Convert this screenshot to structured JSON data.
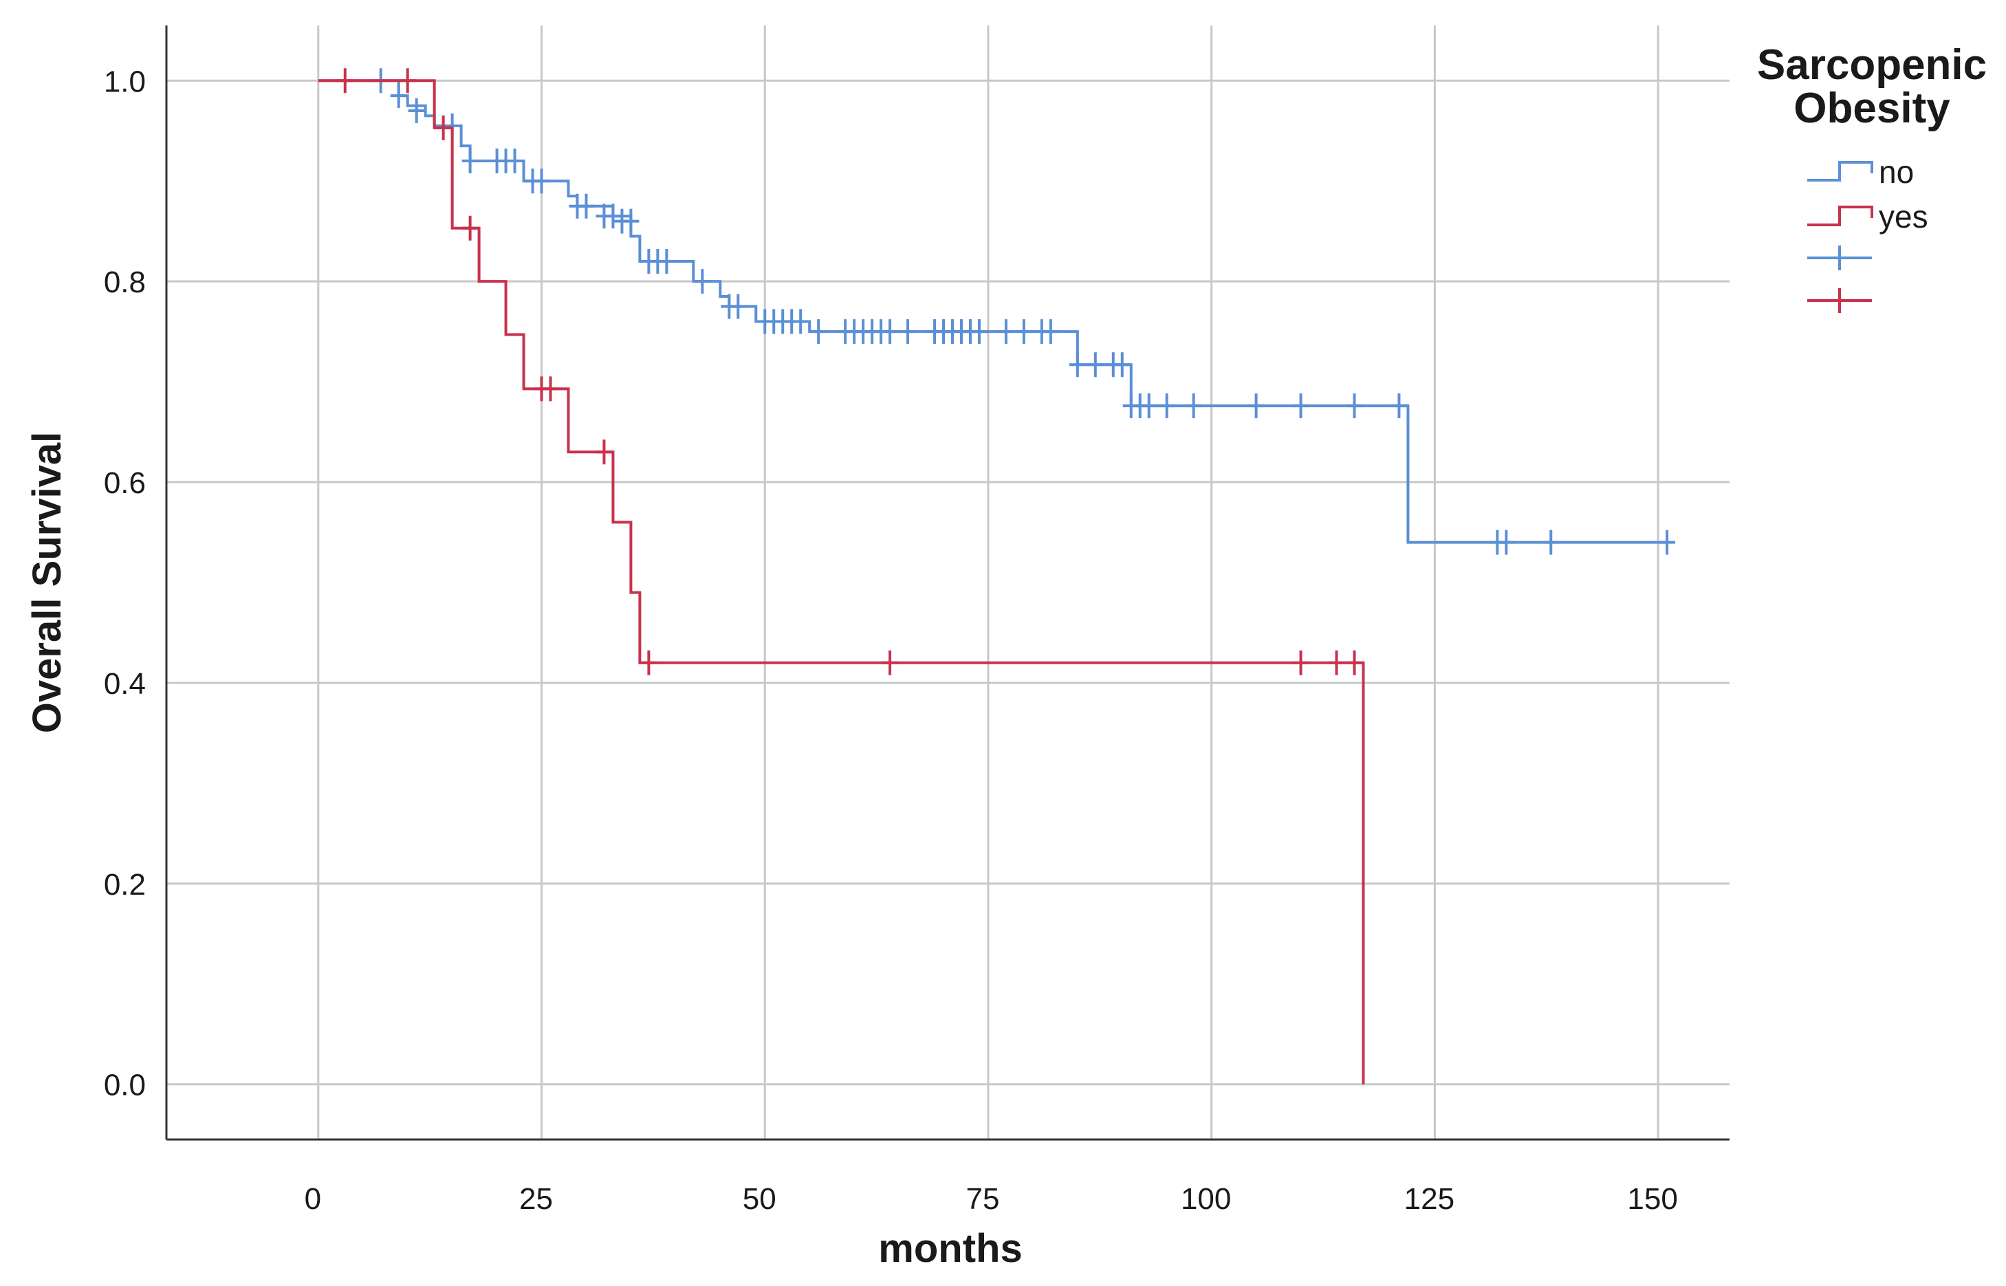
{
  "chart_data": {
    "type": "line",
    "subtype": "kaplan-meier step",
    "title": "",
    "xlabel": "months",
    "ylabel": "Overall Survival",
    "xlim": [
      -17,
      158
    ],
    "ylim": [
      -0.055,
      1.055
    ],
    "x_ticks": [
      "0",
      "25",
      "50",
      "75",
      "100",
      "125",
      "150"
    ],
    "y_ticks": [
      "0.0",
      "0.2",
      "0.4",
      "0.6",
      "0.8",
      "1.0"
    ],
    "grid": true,
    "legend": {
      "title_line1": "Sarcopenic",
      "title_line2": "Obesity",
      "placement": "right",
      "entries": [
        "no",
        "yes",
        "",
        ""
      ]
    },
    "series": [
      {
        "name": "no",
        "color": "#5b8fd6",
        "steps": [
          [
            0,
            1.0
          ],
          [
            9,
            0.985
          ],
          [
            10,
            0.975
          ],
          [
            12,
            0.965
          ],
          [
            13,
            0.955
          ],
          [
            16,
            0.935
          ],
          [
            17,
            0.92
          ],
          [
            23,
            0.9
          ],
          [
            28,
            0.885
          ],
          [
            29,
            0.875
          ],
          [
            33,
            0.865
          ],
          [
            35,
            0.845
          ],
          [
            36,
            0.82
          ],
          [
            42,
            0.8
          ],
          [
            45,
            0.785
          ],
          [
            46,
            0.775
          ],
          [
            49,
            0.76
          ],
          [
            55,
            0.75
          ],
          [
            85,
            0.717
          ],
          [
            91,
            0.676
          ],
          [
            122,
            0.54
          ],
          [
            151,
            0.54
          ]
        ],
        "censored": [
          [
            7,
            1.0
          ],
          [
            9,
            0.985
          ],
          [
            11,
            0.97
          ],
          [
            15,
            0.955
          ],
          [
            17,
            0.92
          ],
          [
            20,
            0.92
          ],
          [
            21,
            0.92
          ],
          [
            22,
            0.92
          ],
          [
            24,
            0.9
          ],
          [
            25,
            0.9
          ],
          [
            29,
            0.875
          ],
          [
            30,
            0.875
          ],
          [
            32,
            0.865
          ],
          [
            33,
            0.865
          ],
          [
            34,
            0.86
          ],
          [
            35,
            0.86
          ],
          [
            37,
            0.82
          ],
          [
            38,
            0.82
          ],
          [
            39,
            0.82
          ],
          [
            43,
            0.8
          ],
          [
            46,
            0.775
          ],
          [
            47,
            0.775
          ],
          [
            50,
            0.76
          ],
          [
            51,
            0.76
          ],
          [
            52,
            0.76
          ],
          [
            53,
            0.76
          ],
          [
            54,
            0.76
          ],
          [
            56,
            0.75
          ],
          [
            59,
            0.75
          ],
          [
            60,
            0.75
          ],
          [
            61,
            0.75
          ],
          [
            62,
            0.75
          ],
          [
            63,
            0.75
          ],
          [
            64,
            0.75
          ],
          [
            66,
            0.75
          ],
          [
            69,
            0.75
          ],
          [
            70,
            0.75
          ],
          [
            71,
            0.75
          ],
          [
            72,
            0.75
          ],
          [
            73,
            0.75
          ],
          [
            74,
            0.75
          ],
          [
            77,
            0.75
          ],
          [
            79,
            0.75
          ],
          [
            81,
            0.75
          ],
          [
            82,
            0.75
          ],
          [
            85,
            0.717
          ],
          [
            87,
            0.717
          ],
          [
            89,
            0.717
          ],
          [
            90,
            0.717
          ],
          [
            91,
            0.676
          ],
          [
            92,
            0.676
          ],
          [
            93,
            0.676
          ],
          [
            95,
            0.676
          ],
          [
            98,
            0.676
          ],
          [
            105,
            0.676
          ],
          [
            110,
            0.676
          ],
          [
            116,
            0.676
          ],
          [
            121,
            0.676
          ],
          [
            132,
            0.54
          ],
          [
            133,
            0.54
          ],
          [
            138,
            0.54
          ],
          [
            151,
            0.54
          ]
        ]
      },
      {
        "name": "yes",
        "color": "#c8324a",
        "steps": [
          [
            0,
            1.0
          ],
          [
            13,
            0.953
          ],
          [
            15,
            0.853
          ],
          [
            18,
            0.8
          ],
          [
            21,
            0.747
          ],
          [
            23,
            0.693
          ],
          [
            28,
            0.63
          ],
          [
            33,
            0.56
          ],
          [
            35,
            0.49
          ],
          [
            36,
            0.42
          ],
          [
            117,
            0.0
          ]
        ],
        "censored": [
          [
            3,
            1.0
          ],
          [
            10,
            1.0
          ],
          [
            14,
            0.953
          ],
          [
            17,
            0.853
          ],
          [
            25,
            0.693
          ],
          [
            26,
            0.693
          ],
          [
            32,
            0.63
          ],
          [
            37,
            0.42
          ],
          [
            64,
            0.42
          ],
          [
            110,
            0.42
          ],
          [
            114,
            0.42
          ],
          [
            116,
            0.42
          ]
        ]
      }
    ]
  }
}
